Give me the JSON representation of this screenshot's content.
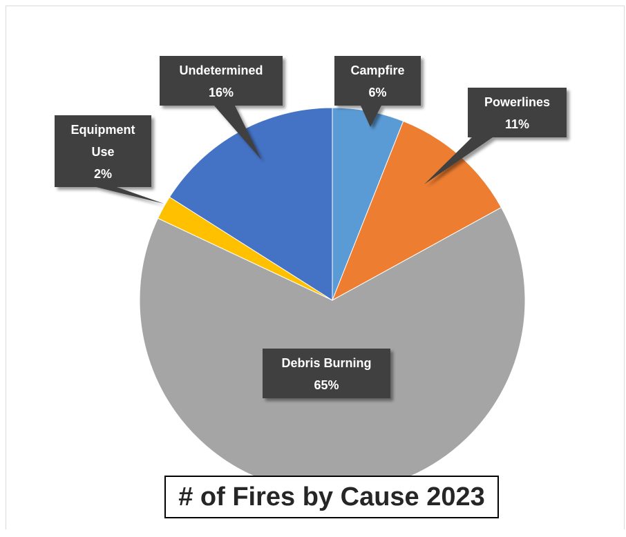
{
  "chart_data": {
    "type": "pie",
    "title": "# of Fires by Cause 2023",
    "slices": [
      {
        "label": "Campfire",
        "label_lines": [
          "Campfire"
        ],
        "value": 6,
        "value_label": "6%",
        "color": "#5b9bd5"
      },
      {
        "label": "Powerlines",
        "label_lines": [
          "Powerlines"
        ],
        "value": 11,
        "value_label": "11%",
        "color": "#ed7d31"
      },
      {
        "label": "Debris Burning",
        "label_lines": [
          "Debris Burning"
        ],
        "value": 65,
        "value_label": "65%",
        "color": "#a5a5a5"
      },
      {
        "label": "Equipment Use",
        "label_lines": [
          "Equipment",
          "Use"
        ],
        "value": 2,
        "value_label": "2%",
        "color": "#ffc000"
      },
      {
        "label": "Undetermined",
        "label_lines": [
          "Undetermined"
        ],
        "value": 16,
        "value_label": "16%",
        "color": "#4472c4"
      }
    ],
    "callout_color": "#404040"
  }
}
